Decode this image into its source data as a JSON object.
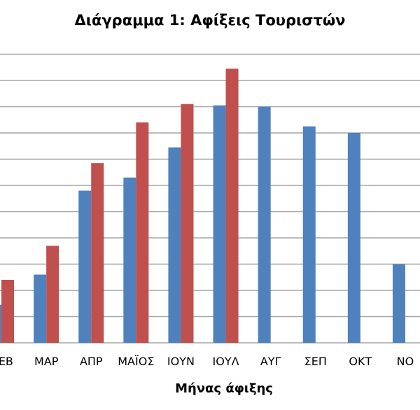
{
  "chart_data": {
    "type": "bar",
    "title": "Διάγραμμα 1: Αφίξεις Τουριστών",
    "xlabel": "Μήνας άφιξης",
    "ylabel": "",
    "categories": [
      "ΦΕΒ",
      "ΜΑΡ",
      "ΑΠΡ",
      "ΜΑΪΟΣ",
      "ΙΟΥΝ",
      "ΙΟΥΛ",
      "ΑΥΓ",
      "ΣΕΠ",
      "ΟΚΤ",
      "ΝΟ"
    ],
    "ylim": [
      0,
      11
    ],
    "grid": true,
    "series": [
      {
        "color": "#4F81BD",
        "values": [
          1.45,
          2.6,
          5.8,
          6.3,
          7.45,
          9.05,
          9.0,
          8.25,
          8.0,
          3.0
        ]
      },
      {
        "color": "#C0504D",
        "values": [
          2.4,
          3.7,
          6.85,
          8.4,
          9.1,
          10.45,
          null,
          null,
          null,
          null
        ]
      }
    ]
  }
}
